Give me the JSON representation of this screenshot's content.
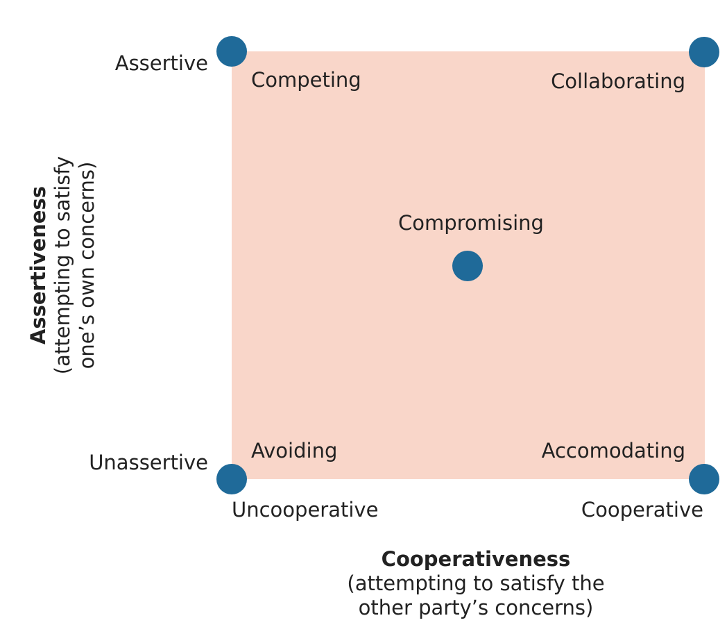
{
  "colors": {
    "fill": "#f9d6c9",
    "dot": "#1f6a99",
    "text": "#222222"
  },
  "y_axis": {
    "title": "Assertiveness",
    "subtitle_line1": "(attempting to satisfy",
    "subtitle_line2": "one’s own concerns)",
    "high_label": "Assertive",
    "low_label": "Unassertive"
  },
  "x_axis": {
    "title": "Cooperativeness",
    "subtitle_line1": "(attempting to satisfy the",
    "subtitle_line2": "other party’s concerns)",
    "low_label": "Uncooperative",
    "high_label": "Cooperative"
  },
  "modes": {
    "competing": "Competing",
    "collaborating": "Collaborating",
    "compromising": "Compromising",
    "avoiding": "Avoiding",
    "accommodating": "Accomodating"
  }
}
